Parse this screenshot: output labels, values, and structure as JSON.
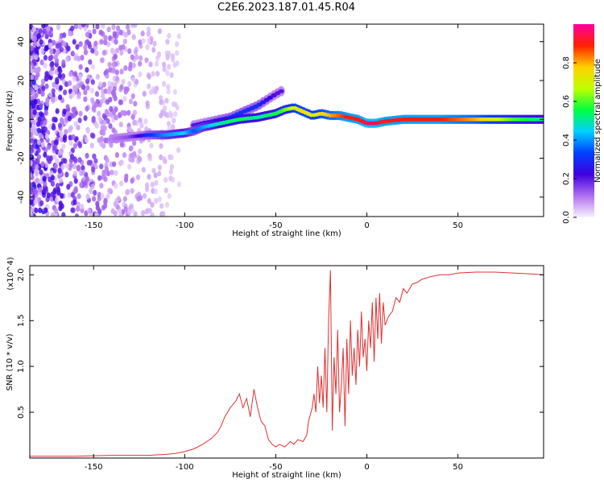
{
  "title": "C2E6.2023.187.01.45.R04",
  "chart_data": [
    {
      "type": "heatmap",
      "name": "spectrogram",
      "xlabel": "Height of straight line (km)",
      "ylabel": "Frequency (Hz)",
      "xlim": [
        -185,
        97
      ],
      "ylim": [
        -50,
        49
      ],
      "xticks": [
        -150,
        -100,
        -50,
        0,
        50
      ],
      "yticks": [
        -40,
        -20,
        0,
        20,
        40
      ],
      "colorbar": {
        "label": "Normalized spectral amplitude",
        "range": [
          0,
          1
        ],
        "ticks": [
          0.0,
          0.2,
          0.4,
          0.6,
          0.8
        ],
        "stops": [
          "#f8f0ff",
          "#b070f0",
          "#4000e0",
          "#0040ff",
          "#00d0ff",
          "#00ff40",
          "#c0ff00",
          "#ffd000",
          "#ff2000",
          "#ff00a0"
        ]
      },
      "ridge": {
        "x": [
          -140,
          -130,
          -120,
          -110,
          -100,
          -95,
          -90,
          -80,
          -70,
          -60,
          -50,
          -45,
          -40,
          -35,
          -30,
          -25,
          -20,
          -15,
          -10,
          -5,
          0,
          5,
          10,
          20,
          40,
          60,
          80,
          97
        ],
        "frequency": [
          -10,
          -9,
          -8,
          -8,
          -7,
          -6,
          -4,
          -2,
          0,
          1,
          3,
          5,
          6,
          4,
          2,
          3,
          2,
          2,
          1,
          0,
          -2,
          -2,
          -1,
          0,
          0,
          0,
          0,
          0
        ],
        "amplitude": [
          0.1,
          0.15,
          0.3,
          0.4,
          0.45,
          0.35,
          0.4,
          0.5,
          0.55,
          0.5,
          0.55,
          0.6,
          0.7,
          0.75,
          0.7,
          0.75,
          0.8,
          0.85,
          0.9,
          0.9,
          0.95,
          0.95,
          0.9,
          0.9,
          0.9,
          0.8,
          0.6,
          0.5
        ]
      },
      "upper_branch": {
        "x": [
          -95,
          -85,
          -75,
          -65,
          -60,
          -55,
          -50,
          -46
        ],
        "frequency": [
          -3,
          -1,
          1,
          5,
          7,
          10,
          13,
          15
        ],
        "amplitude": [
          0.2,
          0.25,
          0.3,
          0.3,
          0.3,
          0.25,
          0.2,
          0.2
        ]
      }
    },
    {
      "type": "line",
      "name": "snr",
      "xlabel": "Height of straight line (km)",
      "ylabel": "SNR (10 * v/v)",
      "y_multiplier": "(x10^4)",
      "xlim": [
        -185,
        97
      ],
      "ylim": [
        0,
        2.1
      ],
      "xticks": [
        -150,
        -100,
        -50,
        0,
        50
      ],
      "yticks": [
        0.5,
        1.0,
        1.5,
        2.0
      ],
      "line_color": "#e03030",
      "series": [
        {
          "name": "SNR",
          "x": [
            -185,
            -160,
            -140,
            -120,
            -110,
            -105,
            -100,
            -95,
            -90,
            -85,
            -82,
            -80,
            -78,
            -75,
            -72,
            -70,
            -68,
            -66,
            -64,
            -62,
            -60,
            -58,
            -56,
            -54,
            -52,
            -50,
            -48,
            -45,
            -42,
            -40,
            -38,
            -35,
            -33,
            -32,
            -30,
            -29,
            -28,
            -27,
            -26,
            -25,
            -24,
            -23,
            -22,
            -21,
            -20,
            -19,
            -18,
            -17,
            -16,
            -15,
            -14,
            -13,
            -12,
            -11,
            -10,
            -9,
            -8,
            -7,
            -6,
            -5,
            -4,
            -3,
            -2,
            -1,
            0,
            1,
            2,
            3,
            4,
            5,
            6,
            7,
            8,
            9,
            10,
            12,
            14,
            16,
            18,
            20,
            22,
            25,
            28,
            30,
            35,
            40,
            45,
            50,
            60,
            70,
            80,
            90,
            97
          ],
          "y": [
            0.02,
            0.02,
            0.03,
            0.03,
            0.04,
            0.05,
            0.07,
            0.1,
            0.15,
            0.22,
            0.28,
            0.35,
            0.45,
            0.55,
            0.62,
            0.7,
            0.55,
            0.65,
            0.45,
            0.75,
            0.55,
            0.4,
            0.35,
            0.2,
            0.15,
            0.12,
            0.15,
            0.12,
            0.18,
            0.15,
            0.2,
            0.18,
            0.25,
            0.4,
            0.55,
            0.7,
            0.5,
            1.0,
            0.6,
            0.9,
            0.55,
            1.2,
            0.5,
            1.5,
            2.05,
            0.3,
            1.1,
            0.7,
            1.4,
            0.5,
            0.8,
            1.2,
            0.35,
            1.3,
            0.7,
            1.5,
            0.9,
            1.2,
            0.8,
            1.4,
            1.0,
            1.6,
            1.1,
            1.3,
            0.95,
            1.5,
            1.2,
            1.7,
            1.05,
            1.75,
            1.3,
            1.8,
            1.25,
            1.7,
            1.45,
            1.55,
            1.6,
            1.75,
            1.7,
            1.85,
            1.8,
            1.9,
            1.92,
            1.95,
            1.98,
            2.0,
            2.0,
            2.02,
            2.03,
            2.03,
            2.02,
            2.01,
            2.0
          ]
        }
      ]
    }
  ]
}
